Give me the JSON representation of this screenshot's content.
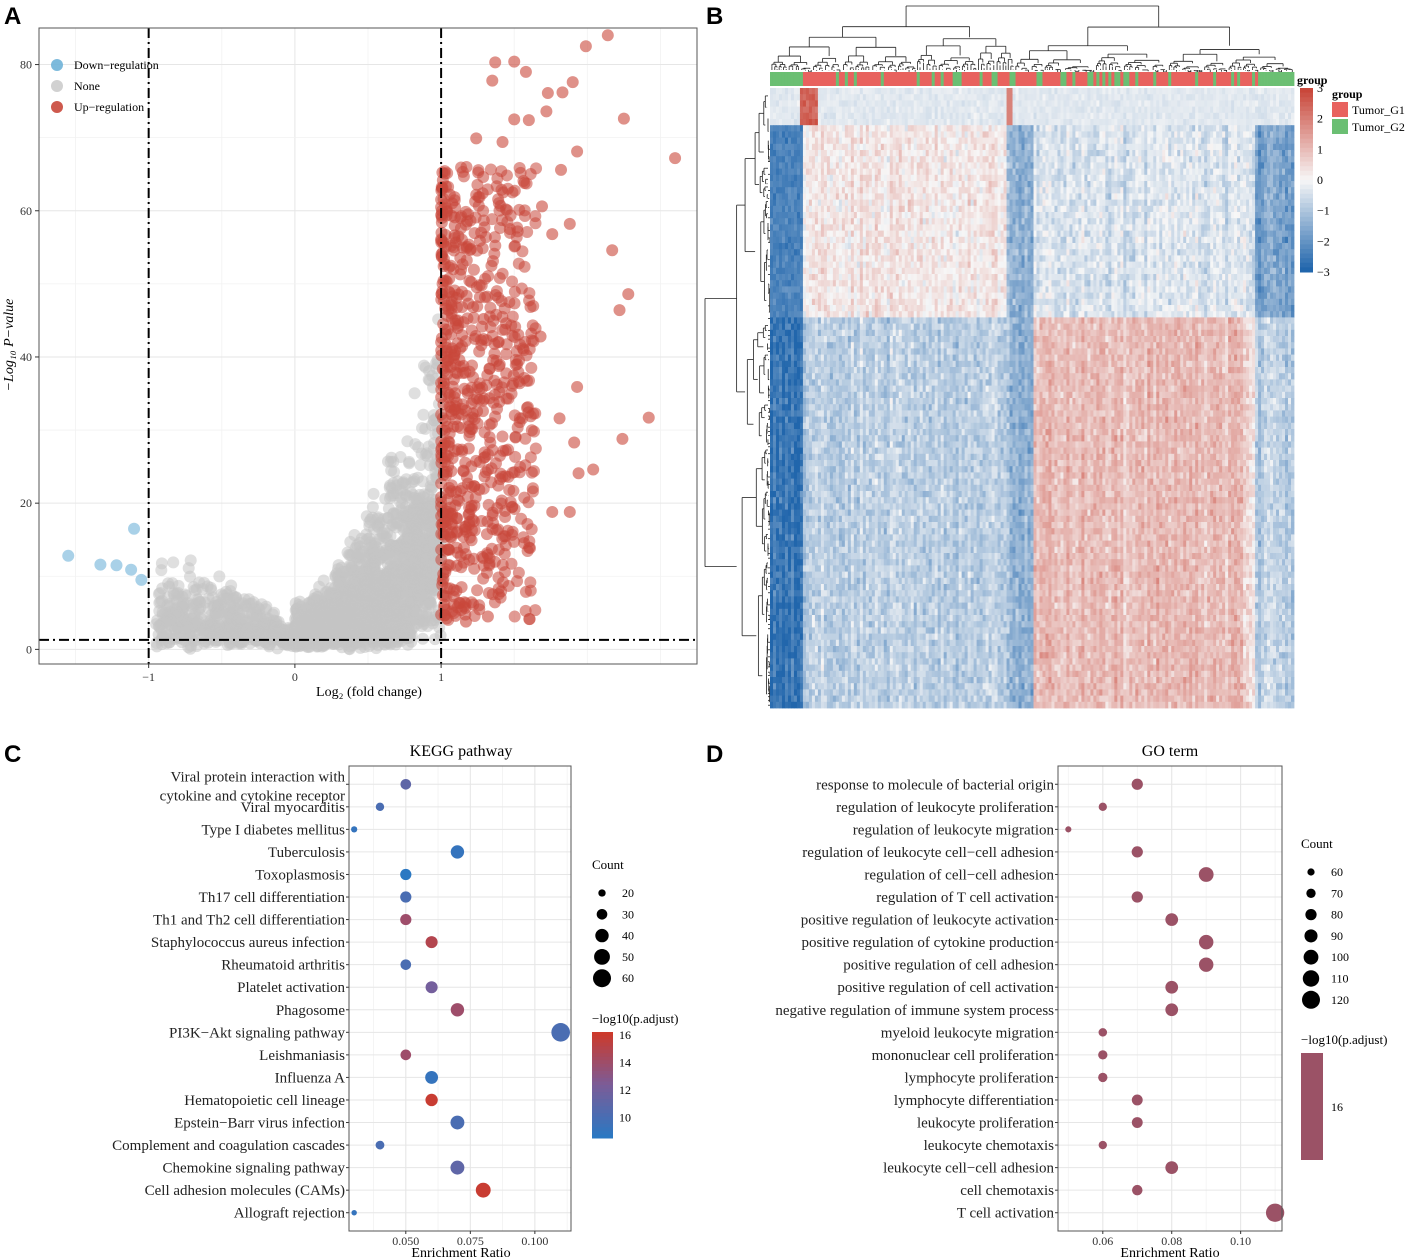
{
  "panels": {
    "a": {
      "letter": "A"
    },
    "b": {
      "letter": "B"
    },
    "c": {
      "letter": "C"
    },
    "d": {
      "letter": "D"
    }
  },
  "chart_data": [
    {
      "id": "volcano",
      "type": "scatter",
      "title": "",
      "xlabel": "Log₂ (fold change)",
      "ylabel": "−Log₁₀ P−value",
      "xlim": [
        -1.75,
        2.75
      ],
      "ylim": [
        -2,
        85
      ],
      "x_ticks": [
        -1,
        0,
        1
      ],
      "x_tick_labels": [
        "−1",
        "0",
        "1"
      ],
      "y_ticks": [
        0,
        20,
        40,
        60,
        80
      ],
      "y_tick_labels": [
        "0",
        "20",
        "40",
        "60",
        "80"
      ],
      "thresholds": {
        "x": [
          -1,
          1
        ],
        "y": 1.3
      },
      "legend": {
        "position": "top-left",
        "entries": [
          {
            "label": "Down−regulation",
            "color": "#6fb3d8"
          },
          {
            "label": "None",
            "color": "#cccccc"
          },
          {
            "label": "Up−regulation",
            "color": "#c9473a"
          }
        ]
      },
      "series": [
        {
          "name": "Down−regulation",
          "color": "#6fb3d8",
          "points": [
            [
              -1.55,
              12.8
            ],
            [
              -1.33,
              11.6
            ],
            [
              -1.22,
              11.5
            ],
            [
              -1.12,
              10.9
            ],
            [
              -1.1,
              16.5
            ],
            [
              -1.05,
              9.5
            ]
          ]
        },
        {
          "name": "Up−regulation",
          "color": "#c9473a",
          "points": [
            [
              2.14,
              84
            ],
            [
              1.99,
              82.5
            ],
            [
              1.5,
              80.4
            ],
            [
              1.37,
              80.3
            ],
            [
              1.58,
              79
            ],
            [
              1.35,
              77.8
            ],
            [
              1.9,
              77.6
            ],
            [
              1.73,
              76.1
            ],
            [
              1.83,
              76.2
            ],
            [
              1.72,
              73.6
            ],
            [
              1.6,
              72.4
            ],
            [
              2.25,
              72.6
            ],
            [
              1.5,
              72.5
            ],
            [
              1.42,
              69.4
            ],
            [
              1.93,
              68.1
            ],
            [
              2.6,
              67.2
            ],
            [
              1.24,
              69.9
            ],
            [
              1.82,
              65.6
            ],
            [
              1.57,
              63.8
            ],
            [
              1.69,
              60.6
            ],
            [
              1.88,
              58.2
            ],
            [
              1.47,
              57.5
            ],
            [
              1.76,
              56.8
            ],
            [
              2.17,
              54.6
            ],
            [
              2.28,
              48.6
            ],
            [
              2.22,
              46.4
            ],
            [
              1.29,
              45.2
            ],
            [
              1.68,
              42.8
            ],
            [
              1.93,
              35.9
            ],
            [
              1.81,
              31.6
            ],
            [
              2.42,
              31.7
            ],
            [
              2.24,
              28.8
            ],
            [
              1.91,
              28.3
            ],
            [
              2.04,
              24.6
            ],
            [
              1.94,
              24.1
            ],
            [
              1.76,
              18.8
            ],
            [
              1.88,
              18.8
            ],
            [
              1.32,
              4.5
            ],
            [
              1.17,
              3.8
            ]
          ]
        }
      ]
    },
    {
      "id": "heatmap",
      "type": "heatmap",
      "legend_title": "group",
      "color_scale": {
        "min": -3,
        "max": 3,
        "ticks": [
          "3",
          "2",
          "1",
          "0",
          "−1",
          "−2",
          "−3"
        ]
      },
      "groups": [
        {
          "name": "Tumor_G1",
          "color": "#e8625e"
        },
        {
          "name": "Tumor_G2",
          "color": "#6bbf73"
        }
      ]
    },
    {
      "id": "kegg",
      "type": "scatter",
      "title": "KEGG pathway",
      "xlabel": "Enrichment Ratio",
      "xlim": [
        0.028,
        0.114
      ],
      "x_ticks": [
        0.05,
        0.075,
        0.1
      ],
      "x_tick_labels": [
        "0.050",
        "0.075",
        "0.100"
      ],
      "categories": [
        "Viral protein interaction with cytokine and cytokine receptor",
        "Viral myocarditis",
        "Type I diabetes mellitus",
        "Tuberculosis",
        "Toxoplasmosis",
        "Th17 cell differentiation",
        "Th1 and Th2 cell differentiation",
        "Staphylococcus aureus infection",
        "Rheumatoid arthritis",
        "Platelet activation",
        "Phagosome",
        "PI3K−Akt signaling pathway",
        "Leishmaniasis",
        "Influenza A",
        "Hematopoietic cell lineage",
        "Epstein−Barr virus infection",
        "Complement and coagulation cascades",
        "Chemokine signaling pathway",
        "Cell adhesion molecules (CAMs)",
        "Allograft rejection"
      ],
      "x": [
        0.05,
        0.04,
        0.03,
        0.07,
        0.05,
        0.05,
        0.05,
        0.06,
        0.05,
        0.06,
        0.07,
        0.11,
        0.05,
        0.06,
        0.06,
        0.07,
        0.04,
        0.07,
        0.08,
        0.03
      ],
      "count": [
        30,
        23,
        17,
        40,
        32,
        32,
        32,
        35,
        30,
        35,
        40,
        63,
        30,
        38,
        36,
        42,
        24,
        42,
        46,
        15
      ],
      "p_adjust": [
        11,
        10,
        9,
        9,
        8,
        10,
        14,
        15,
        10,
        12,
        14,
        10,
        14,
        9,
        16,
        10,
        10,
        11,
        16,
        9
      ],
      "legend": {
        "count_title": "Count",
        "count_levels": [
          20,
          30,
          40,
          50,
          60
        ],
        "color_title": "−log10(p.adjust)",
        "color_ticks": [
          16,
          14,
          12,
          10
        ],
        "color_range": [
          8.5,
          16.2
        ]
      }
    },
    {
      "id": "go",
      "type": "scatter",
      "title": "GO term",
      "xlabel": "Enrichment Ratio",
      "xlim": [
        0.047,
        0.112
      ],
      "x_ticks": [
        0.06,
        0.08,
        0.1
      ],
      "x_tick_labels": [
        "0.06",
        "0.08",
        "0.10"
      ],
      "categories": [
        "response to molecule of bacterial origin",
        "regulation of leukocyte proliferation",
        "regulation of leukocyte migration",
        "regulation of leukocyte cell−cell adhesion",
        "regulation of cell−cell adhesion",
        "regulation of T cell activation",
        "positive regulation of leukocyte activation",
        "positive regulation of cytokine production",
        "positive regulation of cell adhesion",
        "positive regulation of cell activation",
        "negative regulation of immune system process",
        "myeloid leukocyte migration",
        "mononuclear cell proliferation",
        "lymphocyte proliferation",
        "lymphocyte differentiation",
        "leukocyte proliferation",
        "leukocyte chemotaxis",
        "leukocyte cell−cell adhesion",
        "cell chemotaxis",
        "T cell activation"
      ],
      "x": [
        0.07,
        0.06,
        0.05,
        0.07,
        0.09,
        0.07,
        0.08,
        0.09,
        0.09,
        0.08,
        0.08,
        0.06,
        0.06,
        0.06,
        0.07,
        0.07,
        0.06,
        0.08,
        0.07,
        0.11
      ],
      "count": [
        80,
        65,
        55,
        80,
        100,
        80,
        88,
        98,
        98,
        88,
        88,
        66,
        70,
        70,
        78,
        78,
        65,
        88,
        76,
        122
      ],
      "p_adjust": [
        16,
        16,
        16,
        16,
        16,
        16,
        16,
        16,
        16,
        16,
        16,
        16,
        16,
        16,
        16,
        16,
        16,
        16,
        16,
        16
      ],
      "legend": {
        "count_title": "Count",
        "count_levels": [
          60,
          70,
          80,
          90,
          100,
          110,
          120
        ],
        "color_title": "−log10(p.adjust)",
        "color_ticks": [
          16
        ]
      }
    }
  ]
}
